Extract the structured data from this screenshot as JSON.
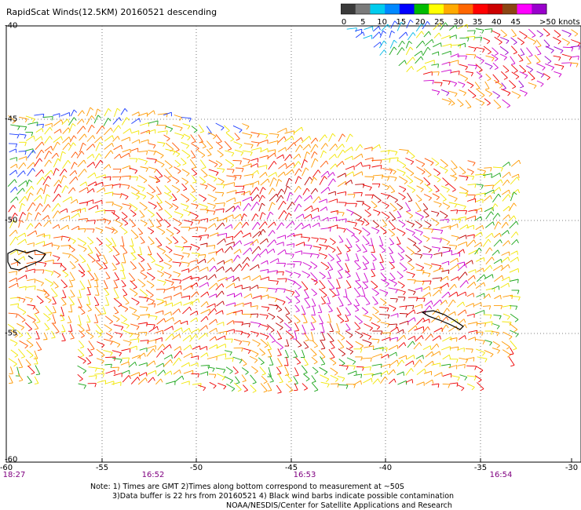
{
  "title": "RapidScat Winds(12.5KM) 20160521 descending",
  "legend": {
    "labels": [
      "0",
      "5",
      "10",
      "15",
      "20",
      "25",
      "30",
      "35",
      "40",
      "45",
      ">50 knots"
    ],
    "colors": [
      "#3a3a3a",
      "#7a7a7a",
      "#00ccee",
      "#0088ff",
      "#0000ff",
      "#00bb00",
      "#ffff00",
      "#ffaa00",
      "#ff6600",
      "#ff0000",
      "#cc0000",
      "#8b4513",
      "#ff00ff",
      "#9900cc"
    ]
  },
  "x_axis": {
    "ticks": [
      "-60",
      "-55",
      "-50",
      "-45",
      "-40",
      "-35",
      "-30"
    ]
  },
  "y_axis": {
    "ticks": [
      "-40",
      "-45",
      "-50",
      "-55",
      "-60"
    ]
  },
  "pass_times": [
    "18:27",
    "16:52",
    "16:53",
    "16:54"
  ],
  "notes": {
    "line1": "Note: 1) Times are GMT 2)Times along bottom correspond to measurement at ~50S",
    "line2": "3)Data buffer is 22 hrs from 20160521 4) Black wind barbs indicate possible contamination",
    "line3": "NOAA/NESDIS/Center for Satellite Applications and Research"
  }
}
